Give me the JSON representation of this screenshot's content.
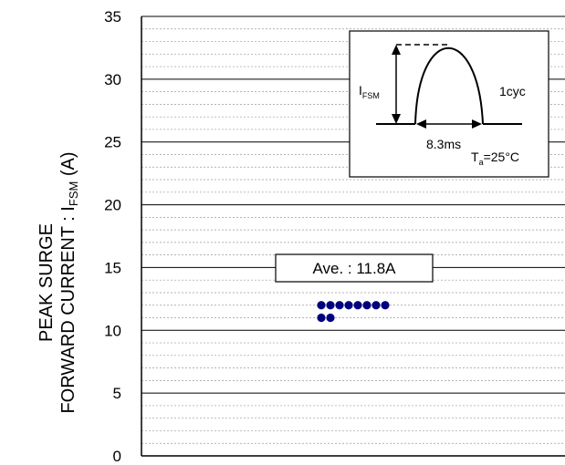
{
  "chart_data": {
    "type": "scatter",
    "ylabel_line1": "PEAK SURGE",
    "ylabel_line2_prefix": "FORWARD CURRENT : I",
    "ylabel_line2_sub": "FSM",
    "ylabel_line2_suffix": " (A)",
    "ylim": [
      0,
      35
    ],
    "yticks": [
      0,
      5,
      10,
      15,
      20,
      25,
      30,
      35
    ],
    "minor_step": 1,
    "grid": true,
    "points": [
      {
        "x": 1,
        "y": 12.0
      },
      {
        "x": 2,
        "y": 12.0
      },
      {
        "x": 3,
        "y": 12.0
      },
      {
        "x": 4,
        "y": 12.0
      },
      {
        "x": 5,
        "y": 12.0
      },
      {
        "x": 6,
        "y": 12.0
      },
      {
        "x": 7,
        "y": 12.0
      },
      {
        "x": 8,
        "y": 12.0
      },
      {
        "x": 1,
        "y": 11.0
      },
      {
        "x": 2,
        "y": 11.0
      }
    ],
    "marker_color": "#00007f",
    "annotation": "Ave. : 11.8A",
    "inset": {
      "ifsm_prefix": "I",
      "ifsm_sub": "FSM",
      "cycle_label": "1cyc",
      "duration_label": "8.3ms",
      "ta_prefix": "T",
      "ta_sub": "a",
      "ta_suffix": "=25°C"
    }
  }
}
